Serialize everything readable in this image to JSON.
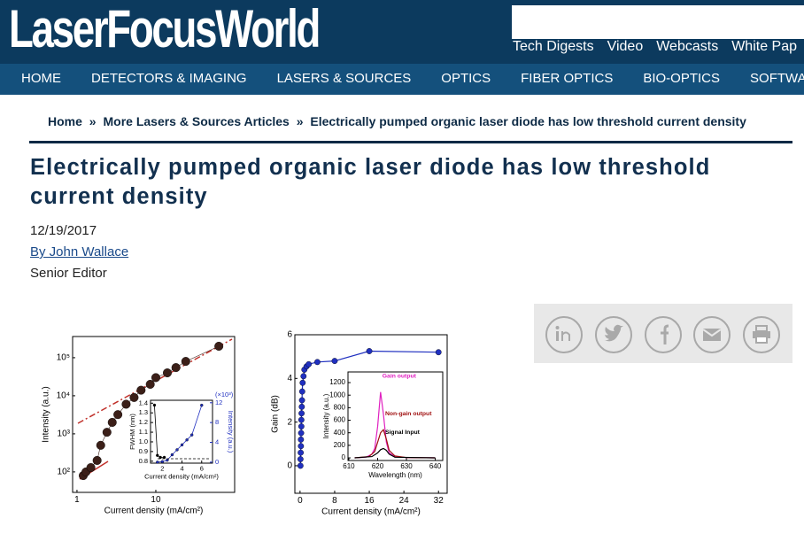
{
  "header": {
    "logo": "LaserFocusWorld",
    "top_links": [
      "Tech Digests",
      "Video",
      "Webcasts",
      "White Pap"
    ]
  },
  "nav": [
    "HOME",
    "DETECTORS & IMAGING",
    "LASERS & SOURCES",
    "OPTICS",
    "FIBER OPTICS",
    "BIO-OPTICS",
    "SOFTWARE &"
  ],
  "breadcrumb": {
    "items": [
      "Home",
      "More Lasers & Sources Articles",
      "Electrically pumped organic laser diode has low threshold current density"
    ],
    "separator": "»"
  },
  "article": {
    "title": "Electrically pumped organic laser diode has low threshold current density",
    "date": "12/19/2017",
    "author": "By John Wallace",
    "role": "Senior Editor"
  },
  "chart_data": [
    {
      "type": "scatter",
      "xscale": "log",
      "yscale": "log",
      "xlim": [
        0.88,
        100
      ],
      "ylim": [
        29,
        360000
      ],
      "xticks": [
        1,
        10
      ],
      "yticks": [
        {
          "value": 100,
          "label": "10²"
        },
        {
          "value": 1000,
          "label": "10³"
        },
        {
          "value": 10000,
          "label": "10⁴"
        },
        {
          "value": 100000,
          "label": "10⁵"
        }
      ],
      "xlabel": "Current density (mA/cm²)",
      "ylabel": "Intensity (a.u.)",
      "series": [
        {
          "color": "#3b1f18",
          "x": [
            1.2,
            1.3,
            1.5,
            1.8,
            2,
            2.4,
            2.8,
            3.3,
            4.2,
            5.3,
            6.5,
            8.5,
            10,
            14,
            18,
            24,
            63
          ],
          "values": [
            80,
            100,
            130,
            200,
            500,
            1100,
            2000,
            3200,
            6000,
            9000,
            14000,
            20000,
            30000,
            40000,
            55000,
            80000,
            200000
          ]
        }
      ]
    },
    {
      "type": "scatter",
      "xlim": [
        0.8,
        7.1
      ],
      "ylim": [
        0.78,
        1.43
      ],
      "y2lim": [
        -0.2,
        12.5
      ],
      "xticks": [
        2,
        4,
        6
      ],
      "yticks": [
        0.8,
        0.9,
        {
          "value": 1,
          "label": "1.0"
        },
        1.1,
        1.2,
        1.3,
        1.4
      ],
      "y2ticks": [
        0,
        4,
        8,
        12
      ],
      "y2color": "#2030c0",
      "xlabel": "Current density (mA/cm²)",
      "ylabel": "FWHM (nm)",
      "y2label": "Intensity (a.u.)",
      "y2_multiplier": "(×10³)",
      "series": [
        {
          "color": "#000000",
          "x": [
            1.2,
            1.5,
            1.8,
            2.2
          ],
          "values": [
            1.38,
            0.86,
            0.84,
            0.84
          ]
        },
        {
          "color": "#2030c0",
          "axis": "y2",
          "x": [
            1.5,
            2,
            2.5,
            3,
            3.5,
            4,
            4.5,
            5,
            6
          ],
          "values": [
            0,
            0.1,
            0.4,
            1.5,
            2.5,
            3.5,
            4.5,
            5.5,
            11.5
          ]
        }
      ]
    },
    {
      "type": "scatter",
      "xlim": [
        -1.2,
        34
      ],
      "ylim": [
        -1.26,
        6
      ],
      "xticks": [
        0,
        8,
        16,
        24,
        32
      ],
      "yticks": [
        0,
        2,
        4,
        6
      ],
      "xlabel": "Current density (mA/cm²)",
      "ylabel": "Gain (dB)",
      "series": [
        {
          "color": "#2030c0",
          "x": [
            0.1,
            0.1,
            0.15,
            0.2,
            0.2,
            0.25,
            0.3,
            0.3,
            0.35,
            0.4,
            0.45,
            0.5,
            0.6,
            0.8,
            1,
            1.5,
            2,
            4,
            8,
            16,
            32
          ],
          "values": [
            0,
            0.3,
            0.6,
            0.9,
            1.2,
            1.5,
            1.8,
            2.1,
            2.4,
            2.7,
            3.0,
            3.4,
            3.8,
            4.1,
            4.4,
            4.55,
            4.65,
            4.75,
            4.8,
            5.25,
            5.2
          ]
        }
      ]
    },
    {
      "type": "line",
      "markers": false,
      "xlim": [
        609.7,
        642.6
      ],
      "ylim": [
        -42,
        1370
      ],
      "xticks": [
        610,
        620,
        630,
        640
      ],
      "yticks": [
        0,
        200,
        400,
        600,
        800,
        1000,
        1200
      ],
      "xlabel": "Wavelength (nm)",
      "ylabel": "Intensity (a.u.)",
      "series": [
        {
          "name": "Gain output",
          "color": "#e020c0",
          "x": [
            612,
            616,
            618,
            619,
            620,
            621,
            622,
            623,
            624,
            626,
            630,
            640
          ],
          "values": [
            0,
            10,
            60,
            150,
            500,
            1050,
            700,
            250,
            80,
            20,
            5,
            0
          ]
        },
        {
          "name": "Non-gain output",
          "color": "#a01010",
          "x": [
            612,
            617,
            619,
            620,
            621,
            622,
            623,
            624,
            626,
            630,
            640
          ],
          "values": [
            0,
            20,
            100,
            250,
            400,
            450,
            300,
            120,
            30,
            5,
            0
          ]
        },
        {
          "name": "Signal Input",
          "color": "#000000",
          "x": [
            612,
            618,
            620,
            621,
            622,
            623,
            624,
            626,
            640
          ],
          "values": [
            0,
            20,
            80,
            130,
            150,
            120,
            60,
            10,
            0
          ]
        }
      ]
    }
  ]
}
